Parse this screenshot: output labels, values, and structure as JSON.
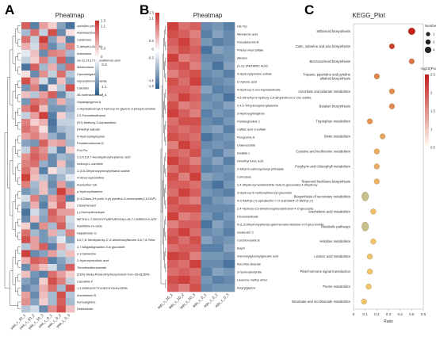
{
  "panels": {
    "a": {
      "letter": "A",
      "title": "Pheatmap"
    },
    "b": {
      "letter": "B",
      "title": "Pheatmap"
    },
    "c": {
      "letter": "C",
      "title": "KEGG_Plot"
    }
  },
  "chart_data": [
    {
      "type": "heatmap",
      "title": "Pheatmap",
      "rows": [
        "cyclo(leu-pro)",
        "Alantolactone",
        "Carabrone",
        "Z-dehydro-Ala-OH",
        "Adenosine",
        "cis-11,14,17-Eicosatrienoic acid",
        "Mesterolone",
        "Carmabrigaril",
        "Glycerylmonostearate",
        "Calcidiol",
        "28-norbrassinolide",
        "Soyasapogenol A",
        "1-Heptadecanoyl-2-hydroxy-sn-glycero-3-phosphocholine",
        "2,5-Furandimethanol",
        "(S?)-Methoxy-3-heptanethiol",
        "Dimethyl adipate",
        "5-Hydroxytryptophol",
        "Pentalenolactone D",
        "Pro-Pro",
        "2,3,4,5,6,7-Hexahydroxyheptanoic acid",
        "crotonyl-L-carnitine",
        "2-(3,5-Dihydroxyphenyl)ethanol sulfate",
        "4-Hexenoylcarnitine",
        "Acetochlor OA",
        "p-Hydroxythiamine",
        "(2,6-Diaza-2H-purin-9-yl) pyridine-3-carboxylate(2,6-DAP)",
        "Chlorphenacil",
        "(-)-Homopterocarpin",
        "METHYL-7-DEOXYPURPUROGALLIN-7-CARBOXYLATE",
        "Ranitidine N-oxide",
        "Hapalindole G",
        "5,6,7,8-Tetrahydroxy-2',4'-dimethoxyflavone-5,6,7,8-Tetra",
        "3,7-Megastigmadien-9-ol glucoside",
        "(+)-Galwesine",
        "2-Hydroxynicotinic acid",
        "Trimethoxibenzamide",
        "(2ER)-3beta,4beta-dihydroxycholest-5-en-26-al(2ER)-",
        "Calcubilin F",
        "1,3-DIDEACETYLDEOXYKHIVORIN",
        "Acemetacin B",
        "homoarginine",
        "Dethiobiotin"
      ],
      "columns": [
        "yaa_c_10_1",
        "yaa_c_10_2",
        "yaa_c_10_3",
        "yaa_c_0_1",
        "yaa_c_0_2",
        "yaa_c_0_3"
      ],
      "colorbar": {
        "min": -1.4,
        "max": 1.3,
        "ticks": [
          1.3,
          1.1,
          0.3,
          0.0,
          -0.3,
          -1.1,
          -1.4
        ],
        "low_color": "#2c5d8e",
        "mid_color": "#ffffff",
        "high_color": "#c9302c"
      },
      "values": [
        [
          1.0,
          -1.1,
          0.6,
          0.3,
          -0.8,
          -1.2
        ],
        [
          -0.6,
          0.9,
          -0.4,
          1.1,
          -1.0,
          0.2
        ],
        [
          0.9,
          -0.4,
          1.2,
          -0.8,
          0.4,
          -1.1
        ],
        [
          0.5,
          -0.3,
          0.9,
          -1.0,
          -0.6,
          0.8
        ],
        [
          -0.2,
          0.4,
          -1.0,
          0.8,
          0.7,
          -0.6
        ],
        [
          -0.4,
          0.3,
          0.8,
          -0.6,
          1.0,
          -1.0
        ],
        [
          -1.2,
          1.0,
          -0.6,
          0.5,
          -0.8,
          0.9
        ],
        [
          0.2,
          -1.0,
          0.7,
          -0.4,
          0.9,
          -0.5
        ],
        [
          1.1,
          0.6,
          -0.3,
          -1.1,
          0.4,
          -0.8
        ],
        [
          -0.9,
          0.8,
          -1.2,
          0.2,
          -0.5,
          1.1
        ],
        [
          0.4,
          -0.5,
          0.6,
          1.0,
          -1.0,
          -0.4
        ],
        [
          -0.9,
          0.9,
          0.8,
          -0.8,
          0.5,
          -0.6
        ],
        [
          0.8,
          1.1,
          0.4,
          -0.9,
          -0.9,
          -0.7
        ],
        [
          -0.4,
          0.6,
          1.2,
          -1.1,
          0.3,
          -0.5
        ],
        [
          0.8,
          0.3,
          0.5,
          -1.2,
          -0.4,
          -0.4
        ],
        [
          0.9,
          0.7,
          0.2,
          -1.1,
          -0.6,
          -0.5
        ],
        [
          0.6,
          0.8,
          0.5,
          -0.7,
          -1.0,
          -0.5
        ],
        [
          -0.8,
          -0.9,
          1.0,
          0.5,
          0.6,
          -0.6
        ],
        [
          -0.4,
          0.9,
          0.7,
          -0.4,
          -1.1,
          0.3
        ],
        [
          0.7,
          1.0,
          0.8,
          -1.0,
          -0.6,
          -0.7
        ],
        [
          0.8,
          0.9,
          -0.7,
          -1.0,
          0.4,
          -0.8
        ],
        [
          0.9,
          0.5,
          -1.1,
          0.2,
          -0.4,
          -0.6
        ],
        [
          1.2,
          0.4,
          -0.5,
          -0.9,
          -0.6,
          -0.2
        ],
        [
          0.8,
          -0.6,
          0.4,
          -1.0,
          0.6,
          -0.8
        ],
        [
          -0.9,
          -0.7,
          0.4,
          -0.8,
          1.2,
          0.7
        ],
        [
          -0.3,
          0.8,
          -0.9,
          0.6,
          0.9,
          -1.1
        ],
        [
          -0.8,
          0.5,
          -1.1,
          0.4,
          1.0,
          0.2
        ],
        [
          -1.2,
          -0.3,
          -0.7,
          1.0,
          0.6,
          0.6
        ],
        [
          -1.0,
          0.4,
          -0.8,
          0.9,
          0.8,
          -0.3
        ],
        [
          0.3,
          -1.1,
          0.7,
          -0.6,
          1.0,
          -0.4
        ],
        [
          0.9,
          -0.6,
          -0.9,
          0.5,
          -0.5,
          0.8
        ],
        [
          1.1,
          0.6,
          -0.9,
          -0.7,
          -0.2,
          -0.8
        ],
        [
          -0.5,
          0.6,
          1.0,
          -1.1,
          0.5,
          -0.3
        ],
        [
          1.2,
          -1.0,
          -0.8,
          0.6,
          -0.4,
          0.4
        ],
        [
          0.5,
          1.0,
          0.9,
          -1.1,
          -0.8,
          -0.5
        ],
        [
          -1.0,
          0.7,
          0.4,
          -0.3,
          -0.9,
          1.0
        ],
        [
          0.4,
          -0.9,
          -1.1,
          0.9,
          0.6,
          0.3
        ],
        [
          -0.8,
          -1.0,
          0.3,
          1.1,
          0.8,
          -0.4
        ],
        [
          -1.0,
          -0.8,
          0.5,
          0.9,
          -0.6,
          1.1
        ],
        [
          0.6,
          -1.0,
          0.4,
          -0.6,
          1.1,
          -0.5
        ],
        [
          0.7,
          -0.8,
          0.3,
          -0.6,
          1.0,
          -0.6
        ],
        [
          -0.5,
          -0.3,
          -1.0,
          0.7,
          1.1,
          0.4
        ]
      ]
    },
    {
      "type": "heatmap",
      "title": "Pheatmap",
      "rows": [
        "His-Trp",
        "Mevalonic acid",
        "Pseudobumin B",
        "Phenyl vinyl sulfate",
        "Allosan",
        "(S,S)-TARTARIC ACID",
        "3-Hydroxytyrosine sulfate",
        "D-Xylonic acid",
        "4-Hydroxy-2-oxo-heptanedioate",
        "4,5-Dimethyl-3-hydroxy-2,5-dihydrofuran-2-one sulfate",
        "2,4,5-Trihydroxyphenylalanine",
        "3-Hydroxyphlogthan",
        "Pantanginolide 1",
        "Caffeic acid 3-sulfate",
        "Ficogovine A",
        "Uraleneoside",
        "Isoalide L",
        "Dimethyl fulvic acid",
        "2-Ethyl-6-carboxyphenyl phthalate",
        "Cornoside",
        "2,4-dihydroxymandelonitrile beta-D-glucoside3,4-dihydroxy",
        "3-Hydroxy-5-methoxybibenzyl glucoside",
        "4-O-Methyl-(+)-epicatechin-7-O-sulphate4'-O-Methyl-(+)",
        "2,4-Hydroxy-3,5-dimethoxyphenylethanol-4-O-glucoside",
        "Dicosanedioate",
        "5-(1,3-Dihydroxyphenyl)-gamma-valerolactone-3-O-glucuronide",
        "Isoaleosin C",
        "Corchionoside B",
        "Bayin",
        "mannosylglucosylglucaric acid",
        "Ascorbyl stearate",
        "3-hydroxybutyrate",
        "Lawsone methyl ether",
        "butyrylglycine"
      ],
      "columns": [
        "aqu_c_10_1",
        "aqu_c_10_2",
        "aqu_c_10_3",
        "aqu_c_0_1",
        "aqu_c_0_2",
        "aqu_c_0_3"
      ],
      "colorbar": {
        "min": -1.4,
        "max": 1.3,
        "ticks": [
          1.3,
          1.1,
          0.3,
          0.0,
          -0.3,
          -1.1,
          -1.3
        ],
        "low_color": "#2c5d8e",
        "mid_color": "#ffffff",
        "high_color": "#c9302c"
      },
      "values": [
        [
          1.2,
          0.9,
          1.0,
          -1.0,
          -0.9,
          -1.1
        ],
        [
          1.1,
          1.0,
          0.8,
          -1.1,
          -0.8,
          -1.0
        ],
        [
          1.0,
          1.2,
          0.9,
          -0.9,
          -1.1,
          -1.0
        ],
        [
          0.9,
          1.1,
          1.0,
          -1.2,
          -0.8,
          -0.9
        ],
        [
          1.2,
          0.8,
          0.9,
          -1.0,
          -1.0,
          -0.9
        ],
        [
          1.0,
          1.1,
          0.8,
          -0.9,
          -1.2,
          -0.8
        ],
        [
          0.8,
          1.0,
          1.1,
          -1.0,
          -0.9,
          -1.1
        ],
        [
          1.1,
          0.9,
          1.2,
          -1.1,
          -1.0,
          -0.9
        ],
        [
          1.0,
          1.0,
          0.9,
          -0.8,
          -1.1,
          -1.0
        ],
        [
          0.9,
          1.2,
          1.0,
          -1.0,
          -0.9,
          -1.2
        ],
        [
          1.1,
          0.8,
          0.9,
          -0.9,
          -1.0,
          -0.8
        ],
        [
          1.2,
          1.0,
          0.8,
          -1.1,
          -0.9,
          -1.0
        ],
        [
          0.9,
          1.1,
          1.1,
          -1.0,
          -1.1,
          -0.9
        ],
        [
          1.0,
          0.9,
          1.0,
          -0.9,
          -0.8,
          -1.1
        ],
        [
          1.1,
          1.0,
          0.9,
          -1.2,
          -1.0,
          -0.9
        ],
        [
          0.8,
          1.2,
          1.0,
          -1.0,
          -0.9,
          -1.0
        ],
        [
          1.0,
          0.9,
          1.1,
          -0.9,
          -1.1,
          -0.8
        ],
        [
          1.2,
          1.0,
          0.8,
          -1.0,
          -0.8,
          -1.1
        ],
        [
          0.9,
          1.1,
          1.0,
          -1.1,
          -1.0,
          -0.9
        ],
        [
          1.1,
          0.8,
          1.2,
          -0.8,
          -0.9,
          -1.0
        ],
        [
          1.0,
          1.0,
          0.9,
          -1.0,
          -1.2,
          -0.9
        ],
        [
          0.9,
          1.2,
          1.0,
          -0.9,
          -1.0,
          -1.1
        ],
        [
          1.1,
          0.9,
          0.8,
          -1.1,
          -0.9,
          -0.8
        ],
        [
          1.0,
          1.1,
          1.1,
          -1.0,
          -1.0,
          -1.0
        ],
        [
          1.2,
          0.8,
          0.9,
          -0.9,
          -1.1,
          -0.9
        ],
        [
          0.8,
          1.0,
          1.0,
          -1.2,
          -0.8,
          -1.0
        ],
        [
          1.0,
          1.2,
          0.9,
          -1.0,
          -0.9,
          -1.1
        ],
        [
          1.1,
          0.9,
          1.1,
          -0.8,
          -1.0,
          -0.9
        ],
        [
          0.9,
          1.0,
          1.0,
          -1.1,
          -1.1,
          -0.8
        ],
        [
          1.2,
          1.1,
          0.8,
          -0.9,
          -0.9,
          -1.0
        ],
        [
          1.0,
          0.9,
          1.2,
          -1.0,
          -1.0,
          -1.2
        ],
        [
          0.9,
          1.0,
          0.9,
          -1.1,
          -0.8,
          -0.9
        ],
        [
          1.1,
          1.2,
          1.0,
          -0.9,
          -1.1,
          -1.0
        ],
        [
          1.0,
          0.8,
          1.1,
          -1.0,
          -0.9,
          -0.9
        ]
      ]
    },
    {
      "type": "scatter",
      "title": "KEGG_Plot",
      "xlabel": "Ratio",
      "xlim": [
        0,
        0.6
      ],
      "xticks": [
        0,
        0.1,
        0.2,
        0.3,
        0.4,
        0.5,
        0.6
      ],
      "categories": [
        "Stilbenoid biosynthesis",
        "Cutin, suberine and wax biosynthesis",
        "Benzoxazinoid biosynthesis",
        "Tropane, piperidine and pyridine alkaloid biosynthesis",
        "Ascorbate and aldarate metabolism",
        "Betalain biosynthesis",
        "Tryptophan metabolism",
        "Biotin metabolism",
        "Cysteine and methionine metabolism",
        "Porphyrin and chlorophyll metabolism",
        "Terpenoid backbone biosynthesis",
        "Biosynthesis of secondary metabolites",
        "Arachidonic acid metabolism",
        "Metabolic pathways",
        "Histidine metabolism",
        "Linoleic acid metabolism",
        "Plant hormone signal transduction",
        "Purine metabolism",
        "Nicotinate and nicotinamide metabolism"
      ],
      "points": [
        {
          "x": 0.5,
          "number": 2,
          "neglog10p": 2.6
        },
        {
          "x": 0.33,
          "number": 1,
          "neglog10p": 2.1
        },
        {
          "x": 0.5,
          "number": 1,
          "neglog10p": 1.5
        },
        {
          "x": 0.2,
          "number": 1,
          "neglog10p": 1.3
        },
        {
          "x": 0.33,
          "number": 1,
          "neglog10p": 1.2
        },
        {
          "x": 0.33,
          "number": 1,
          "neglog10p": 1.2
        },
        {
          "x": 0.14,
          "number": 1,
          "neglog10p": 1.1
        },
        {
          "x": 0.25,
          "number": 1,
          "neglog10p": 0.9
        },
        {
          "x": 0.2,
          "number": 1,
          "neglog10p": 0.8
        },
        {
          "x": 0.2,
          "number": 1,
          "neglog10p": 0.8
        },
        {
          "x": 0.2,
          "number": 1,
          "neglog10p": 0.7
        },
        {
          "x": 0.1,
          "number": 4,
          "neglog10p": 0.7
        },
        {
          "x": 0.17,
          "number": 1,
          "neglog10p": 0.6
        },
        {
          "x": 0.1,
          "number": 4,
          "neglog10p": 0.6
        },
        {
          "x": 0.17,
          "number": 1,
          "neglog10p": 0.5
        },
        {
          "x": 0.14,
          "number": 1,
          "neglog10p": 0.5
        },
        {
          "x": 0.14,
          "number": 1,
          "neglog10p": 0.4
        },
        {
          "x": 0.13,
          "number": 1,
          "neglog10p": 0.4
        },
        {
          "x": 0.09,
          "number": 1,
          "neglog10p": 0.3
        }
      ],
      "size_legend": {
        "title": "Number",
        "values": [
          1,
          2,
          4
        ]
      },
      "color_legend": {
        "title": "-log10(Pvalue)",
        "ticks": [
          2.5,
          2.0,
          1.5,
          1.0,
          0.5
        ],
        "low_color": "#fffef5",
        "high_color": "#c21f1f"
      }
    }
  ]
}
